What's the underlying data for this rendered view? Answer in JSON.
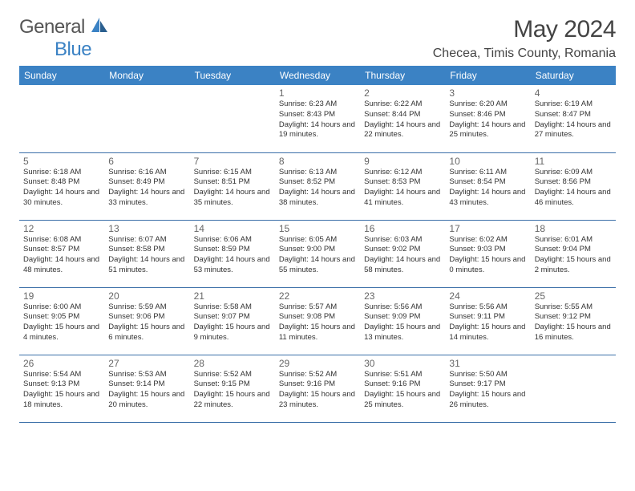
{
  "brand": {
    "general": "General",
    "blue": "Blue"
  },
  "title": "May 2024",
  "location": "Checea, Timis County, Romania",
  "colors": {
    "header_bg": "#3b82c4",
    "header_text": "#ffffff",
    "border": "#3b6fa8",
    "body_text": "#333333",
    "muted": "#666666"
  },
  "day_names": [
    "Sunday",
    "Monday",
    "Tuesday",
    "Wednesday",
    "Thursday",
    "Friday",
    "Saturday"
  ],
  "weeks": [
    [
      null,
      null,
      null,
      {
        "n": "1",
        "sr": "6:23 AM",
        "ss": "8:43 PM",
        "dl": "14 hours and 19 minutes."
      },
      {
        "n": "2",
        "sr": "6:22 AM",
        "ss": "8:44 PM",
        "dl": "14 hours and 22 minutes."
      },
      {
        "n": "3",
        "sr": "6:20 AM",
        "ss": "8:46 PM",
        "dl": "14 hours and 25 minutes."
      },
      {
        "n": "4",
        "sr": "6:19 AM",
        "ss": "8:47 PM",
        "dl": "14 hours and 27 minutes."
      }
    ],
    [
      {
        "n": "5",
        "sr": "6:18 AM",
        "ss": "8:48 PM",
        "dl": "14 hours and 30 minutes."
      },
      {
        "n": "6",
        "sr": "6:16 AM",
        "ss": "8:49 PM",
        "dl": "14 hours and 33 minutes."
      },
      {
        "n": "7",
        "sr": "6:15 AM",
        "ss": "8:51 PM",
        "dl": "14 hours and 35 minutes."
      },
      {
        "n": "8",
        "sr": "6:13 AM",
        "ss": "8:52 PM",
        "dl": "14 hours and 38 minutes."
      },
      {
        "n": "9",
        "sr": "6:12 AM",
        "ss": "8:53 PM",
        "dl": "14 hours and 41 minutes."
      },
      {
        "n": "10",
        "sr": "6:11 AM",
        "ss": "8:54 PM",
        "dl": "14 hours and 43 minutes."
      },
      {
        "n": "11",
        "sr": "6:09 AM",
        "ss": "8:56 PM",
        "dl": "14 hours and 46 minutes."
      }
    ],
    [
      {
        "n": "12",
        "sr": "6:08 AM",
        "ss": "8:57 PM",
        "dl": "14 hours and 48 minutes."
      },
      {
        "n": "13",
        "sr": "6:07 AM",
        "ss": "8:58 PM",
        "dl": "14 hours and 51 minutes."
      },
      {
        "n": "14",
        "sr": "6:06 AM",
        "ss": "8:59 PM",
        "dl": "14 hours and 53 minutes."
      },
      {
        "n": "15",
        "sr": "6:05 AM",
        "ss": "9:00 PM",
        "dl": "14 hours and 55 minutes."
      },
      {
        "n": "16",
        "sr": "6:03 AM",
        "ss": "9:02 PM",
        "dl": "14 hours and 58 minutes."
      },
      {
        "n": "17",
        "sr": "6:02 AM",
        "ss": "9:03 PM",
        "dl": "15 hours and 0 minutes."
      },
      {
        "n": "18",
        "sr": "6:01 AM",
        "ss": "9:04 PM",
        "dl": "15 hours and 2 minutes."
      }
    ],
    [
      {
        "n": "19",
        "sr": "6:00 AM",
        "ss": "9:05 PM",
        "dl": "15 hours and 4 minutes."
      },
      {
        "n": "20",
        "sr": "5:59 AM",
        "ss": "9:06 PM",
        "dl": "15 hours and 6 minutes."
      },
      {
        "n": "21",
        "sr": "5:58 AM",
        "ss": "9:07 PM",
        "dl": "15 hours and 9 minutes."
      },
      {
        "n": "22",
        "sr": "5:57 AM",
        "ss": "9:08 PM",
        "dl": "15 hours and 11 minutes."
      },
      {
        "n": "23",
        "sr": "5:56 AM",
        "ss": "9:09 PM",
        "dl": "15 hours and 13 minutes."
      },
      {
        "n": "24",
        "sr": "5:56 AM",
        "ss": "9:11 PM",
        "dl": "15 hours and 14 minutes."
      },
      {
        "n": "25",
        "sr": "5:55 AM",
        "ss": "9:12 PM",
        "dl": "15 hours and 16 minutes."
      }
    ],
    [
      {
        "n": "26",
        "sr": "5:54 AM",
        "ss": "9:13 PM",
        "dl": "15 hours and 18 minutes."
      },
      {
        "n": "27",
        "sr": "5:53 AM",
        "ss": "9:14 PM",
        "dl": "15 hours and 20 minutes."
      },
      {
        "n": "28",
        "sr": "5:52 AM",
        "ss": "9:15 PM",
        "dl": "15 hours and 22 minutes."
      },
      {
        "n": "29",
        "sr": "5:52 AM",
        "ss": "9:16 PM",
        "dl": "15 hours and 23 minutes."
      },
      {
        "n": "30",
        "sr": "5:51 AM",
        "ss": "9:16 PM",
        "dl": "15 hours and 25 minutes."
      },
      {
        "n": "31",
        "sr": "5:50 AM",
        "ss": "9:17 PM",
        "dl": "15 hours and 26 minutes."
      },
      null
    ]
  ],
  "labels": {
    "sunrise": "Sunrise:",
    "sunset": "Sunset:",
    "daylight": "Daylight:"
  }
}
